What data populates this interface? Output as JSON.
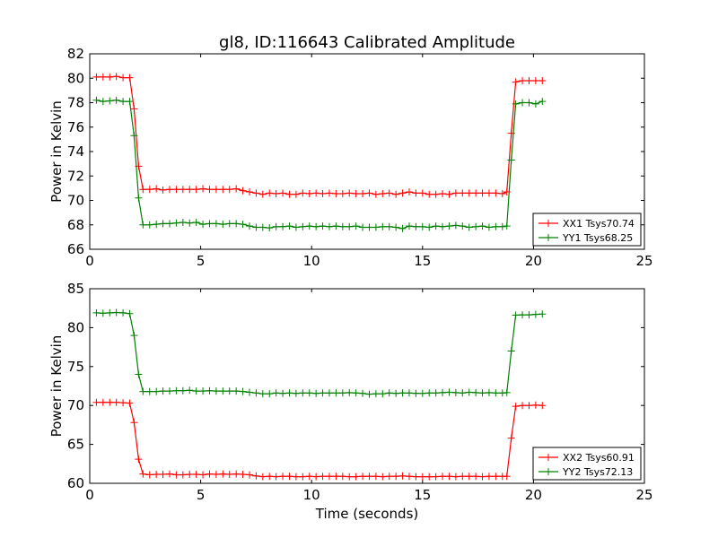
{
  "title": "gl8, ID:116643 Calibrated Amplitude",
  "xlabel": "Time (seconds)",
  "colors": {
    "red": "#ff0000",
    "green": "#008000"
  },
  "chart_data": [
    {
      "type": "line",
      "ylabel": "Power in Kelvin",
      "xlim": [
        0,
        25
      ],
      "ylim": [
        66,
        82
      ],
      "xticks": [
        0,
        5,
        10,
        15,
        20,
        25
      ],
      "yticks": [
        66,
        68,
        70,
        72,
        74,
        76,
        78,
        80,
        82
      ],
      "legend_position": "lower-right",
      "series": [
        {
          "name": "XX1 Tsys70.74",
          "color": "#ff0000",
          "x": [
            0.3,
            0.6,
            0.9,
            1.2,
            1.5,
            1.8,
            2.0,
            2.2,
            2.4,
            2.7,
            3.0,
            3.3,
            3.6,
            3.9,
            4.2,
            4.5,
            4.8,
            5.1,
            5.4,
            5.7,
            6.0,
            6.3,
            6.6,
            6.9,
            7.2,
            7.5,
            7.8,
            8.1,
            8.4,
            8.7,
            9.0,
            9.3,
            9.6,
            9.9,
            10.2,
            10.5,
            10.8,
            11.1,
            11.4,
            11.7,
            12.0,
            12.3,
            12.6,
            12.9,
            13.2,
            13.5,
            13.8,
            14.1,
            14.4,
            14.7,
            15.0,
            15.3,
            15.6,
            15.9,
            16.2,
            16.5,
            16.8,
            17.1,
            17.4,
            17.7,
            18.0,
            18.3,
            18.6,
            18.8,
            19.0,
            19.2,
            19.5,
            19.8,
            20.1,
            20.4
          ],
          "y": [
            80.1,
            80.1,
            80.1,
            80.15,
            80.05,
            80.05,
            77.5,
            72.8,
            70.9,
            70.9,
            70.95,
            70.85,
            70.9,
            70.9,
            70.9,
            70.9,
            70.9,
            70.95,
            70.9,
            70.9,
            70.9,
            70.9,
            70.95,
            70.8,
            70.7,
            70.6,
            70.5,
            70.6,
            70.55,
            70.6,
            70.5,
            70.5,
            70.6,
            70.55,
            70.6,
            70.55,
            70.6,
            70.55,
            70.55,
            70.6,
            70.55,
            70.55,
            70.6,
            70.5,
            70.55,
            70.6,
            70.5,
            70.6,
            70.7,
            70.6,
            70.6,
            70.5,
            70.5,
            70.55,
            70.5,
            70.6,
            70.6,
            70.6,
            70.6,
            70.6,
            70.6,
            70.6,
            70.55,
            70.7,
            75.5,
            79.7,
            79.8,
            79.8,
            79.8,
            79.8
          ]
        },
        {
          "name": "YY1 Tsys68.25",
          "color": "#008000",
          "x": [
            0.3,
            0.6,
            0.9,
            1.2,
            1.5,
            1.8,
            2.0,
            2.2,
            2.4,
            2.7,
            3.0,
            3.3,
            3.6,
            3.9,
            4.2,
            4.5,
            4.8,
            5.1,
            5.4,
            5.7,
            6.0,
            6.3,
            6.6,
            6.9,
            7.2,
            7.5,
            7.8,
            8.1,
            8.4,
            8.7,
            9.0,
            9.3,
            9.6,
            9.9,
            10.2,
            10.5,
            10.8,
            11.1,
            11.4,
            11.7,
            12.0,
            12.3,
            12.6,
            12.9,
            13.2,
            13.5,
            13.8,
            14.1,
            14.4,
            14.7,
            15.0,
            15.3,
            15.6,
            15.9,
            16.2,
            16.5,
            16.8,
            17.1,
            17.4,
            17.7,
            18.0,
            18.3,
            18.6,
            18.8,
            19.0,
            19.2,
            19.5,
            19.8,
            20.1,
            20.4
          ],
          "y": [
            78.2,
            78.1,
            78.15,
            78.2,
            78.1,
            78.1,
            75.3,
            70.2,
            68.0,
            68.0,
            68.05,
            68.1,
            68.1,
            68.15,
            68.2,
            68.15,
            68.2,
            68.05,
            68.1,
            68.1,
            68.05,
            68.1,
            68.1,
            68.05,
            67.9,
            67.8,
            67.8,
            67.75,
            67.85,
            67.85,
            67.9,
            67.8,
            67.85,
            67.9,
            67.85,
            67.9,
            67.85,
            67.9,
            67.85,
            67.85,
            67.9,
            67.8,
            67.8,
            67.8,
            67.85,
            67.85,
            67.8,
            67.7,
            67.9,
            67.85,
            67.85,
            67.8,
            67.9,
            67.85,
            67.9,
            67.95,
            67.9,
            67.8,
            67.85,
            67.9,
            67.8,
            67.85,
            67.85,
            67.9,
            73.3,
            77.9,
            78.0,
            78.0,
            77.9,
            78.1
          ]
        }
      ]
    },
    {
      "type": "line",
      "ylabel": "Power in Kelvin",
      "xlim": [
        0,
        25
      ],
      "ylim": [
        60,
        85
      ],
      "xticks": [
        0,
        5,
        10,
        15,
        20,
        25
      ],
      "yticks": [
        60,
        65,
        70,
        75,
        80,
        85
      ],
      "legend_position": "lower-right",
      "series": [
        {
          "name": "XX2 Tsys60.91",
          "color": "#ff0000",
          "x": [
            0.3,
            0.6,
            0.9,
            1.2,
            1.5,
            1.8,
            2.0,
            2.2,
            2.4,
            2.7,
            3.0,
            3.3,
            3.6,
            3.9,
            4.2,
            4.5,
            4.8,
            5.1,
            5.4,
            5.7,
            6.0,
            6.3,
            6.6,
            6.9,
            7.2,
            7.5,
            7.8,
            8.1,
            8.4,
            8.7,
            9.0,
            9.3,
            9.6,
            9.9,
            10.2,
            10.5,
            10.8,
            11.1,
            11.4,
            11.7,
            12.0,
            12.3,
            12.6,
            12.9,
            13.2,
            13.5,
            13.8,
            14.1,
            14.4,
            14.7,
            15.0,
            15.3,
            15.6,
            15.9,
            16.2,
            16.5,
            16.8,
            17.1,
            17.4,
            17.7,
            18.0,
            18.3,
            18.6,
            18.8,
            19.0,
            19.2,
            19.5,
            19.8,
            20.1,
            20.4
          ],
          "y": [
            70.4,
            70.4,
            70.4,
            70.4,
            70.35,
            70.3,
            67.8,
            63.1,
            61.2,
            61.1,
            61.15,
            61.15,
            61.2,
            61.1,
            61.1,
            61.15,
            61.15,
            61.1,
            61.2,
            61.15,
            61.2,
            61.15,
            61.2,
            61.15,
            61.1,
            60.95,
            60.85,
            60.9,
            60.85,
            60.9,
            60.9,
            60.85,
            60.85,
            60.9,
            60.85,
            60.9,
            60.9,
            60.9,
            60.9,
            60.85,
            60.85,
            60.9,
            60.9,
            60.9,
            60.85,
            60.9,
            60.9,
            60.95,
            60.9,
            60.85,
            60.85,
            60.85,
            60.85,
            60.9,
            60.9,
            60.85,
            60.9,
            60.9,
            60.9,
            60.85,
            60.9,
            60.9,
            60.9,
            60.9,
            65.8,
            69.9,
            70.0,
            70.0,
            70.05,
            70.0
          ]
        },
        {
          "name": "YY2 Tsys72.13",
          "color": "#008000",
          "x": [
            0.3,
            0.6,
            0.9,
            1.2,
            1.5,
            1.8,
            2.0,
            2.2,
            2.4,
            2.7,
            3.0,
            3.3,
            3.6,
            3.9,
            4.2,
            4.5,
            4.8,
            5.1,
            5.4,
            5.7,
            6.0,
            6.3,
            6.6,
            6.9,
            7.2,
            7.5,
            7.8,
            8.1,
            8.4,
            8.7,
            9.0,
            9.3,
            9.6,
            9.9,
            10.2,
            10.5,
            10.8,
            11.1,
            11.4,
            11.7,
            12.0,
            12.3,
            12.6,
            12.9,
            13.2,
            13.5,
            13.8,
            14.1,
            14.4,
            14.7,
            15.0,
            15.3,
            15.6,
            15.9,
            16.2,
            16.5,
            16.8,
            17.1,
            17.4,
            17.7,
            18.0,
            18.3,
            18.6,
            18.8,
            19.0,
            19.2,
            19.5,
            19.8,
            20.1,
            20.4
          ],
          "y": [
            81.9,
            81.85,
            81.9,
            81.95,
            81.9,
            81.8,
            79.0,
            74.0,
            71.8,
            71.8,
            71.8,
            71.85,
            71.85,
            71.9,
            71.9,
            71.95,
            71.85,
            71.85,
            71.9,
            71.85,
            71.85,
            71.85,
            71.85,
            71.8,
            71.7,
            71.6,
            71.5,
            71.5,
            71.6,
            71.55,
            71.6,
            71.55,
            71.6,
            71.6,
            71.55,
            71.6,
            71.6,
            71.6,
            71.6,
            71.65,
            71.6,
            71.55,
            71.45,
            71.5,
            71.5,
            71.6,
            71.55,
            71.6,
            71.6,
            71.55,
            71.55,
            71.6,
            71.6,
            71.65,
            71.7,
            71.65,
            71.6,
            71.7,
            71.65,
            71.6,
            71.65,
            71.6,
            71.6,
            71.65,
            77.0,
            81.6,
            81.65,
            81.65,
            81.7,
            81.75
          ]
        }
      ]
    }
  ]
}
